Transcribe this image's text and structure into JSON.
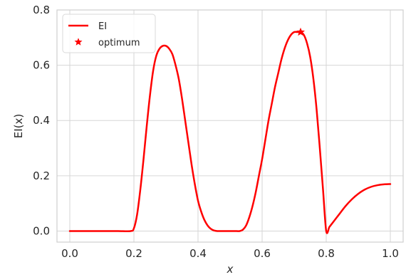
{
  "chart_data": {
    "type": "line",
    "title": "",
    "xlabel": "x",
    "ylabel": "EI(x)",
    "xlim": [
      -0.04,
      1.04
    ],
    "ylim": [
      -0.04,
      0.8
    ],
    "xticks": [
      0.0,
      0.2,
      0.4,
      0.6,
      0.8,
      1.0
    ],
    "xtick_labels": [
      "0.0",
      "0.2",
      "0.4",
      "0.6",
      "0.8",
      "1.0"
    ],
    "yticks": [
      0.0,
      0.2,
      0.4,
      0.6,
      0.8
    ],
    "ytick_labels": [
      "0.0",
      "0.2",
      "0.4",
      "0.6",
      "0.8"
    ],
    "grid": true,
    "legend_position": "top-left",
    "series": [
      {
        "name": "EI",
        "color": "#ff0000",
        "x": [
          0.0,
          0.05,
          0.1,
          0.15,
          0.19,
          0.2,
          0.21,
          0.22,
          0.23,
          0.24,
          0.25,
          0.26,
          0.27,
          0.28,
          0.29,
          0.3,
          0.31,
          0.32,
          0.33,
          0.34,
          0.35,
          0.36,
          0.37,
          0.38,
          0.39,
          0.4,
          0.41,
          0.42,
          0.43,
          0.44,
          0.45,
          0.46,
          0.47,
          0.48,
          0.5,
          0.52,
          0.53,
          0.54,
          0.55,
          0.56,
          0.57,
          0.58,
          0.59,
          0.6,
          0.61,
          0.62,
          0.63,
          0.64,
          0.65,
          0.66,
          0.67,
          0.68,
          0.69,
          0.7,
          0.71,
          0.72,
          0.73,
          0.74,
          0.75,
          0.76,
          0.77,
          0.78,
          0.79,
          0.8,
          0.81,
          0.82,
          0.84,
          0.86,
          0.88,
          0.9,
          0.92,
          0.94,
          0.96,
          0.98,
          1.0
        ],
        "y": [
          0.0,
          0.0,
          0.0,
          0.0,
          0.0,
          0.01,
          0.06,
          0.15,
          0.26,
          0.38,
          0.49,
          0.58,
          0.635,
          0.66,
          0.67,
          0.67,
          0.66,
          0.64,
          0.6,
          0.55,
          0.48,
          0.4,
          0.32,
          0.24,
          0.17,
          0.11,
          0.07,
          0.04,
          0.02,
          0.008,
          0.002,
          0.0,
          0.0,
          0.0,
          0.0,
          0.0,
          0.0,
          0.005,
          0.02,
          0.05,
          0.09,
          0.14,
          0.2,
          0.26,
          0.33,
          0.4,
          0.46,
          0.52,
          0.57,
          0.62,
          0.66,
          0.69,
          0.71,
          0.72,
          0.72,
          0.72,
          0.71,
          0.68,
          0.63,
          0.55,
          0.44,
          0.3,
          0.15,
          0.0,
          0.015,
          0.03,
          0.06,
          0.09,
          0.115,
          0.135,
          0.15,
          0.16,
          0.166,
          0.169,
          0.17
        ]
      },
      {
        "name": "optimum",
        "color": "#ff0000",
        "marker": "star",
        "x": [
          0.72
        ],
        "y": [
          0.72
        ]
      }
    ]
  }
}
